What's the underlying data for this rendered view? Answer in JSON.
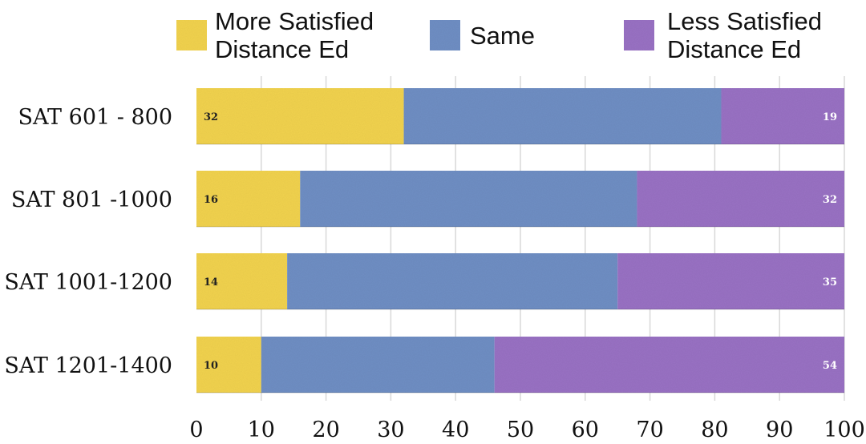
{
  "chart_data": {
    "type": "bar",
    "orientation": "horizontal",
    "stacked": true,
    "categories": [
      "SAT 601 - 800",
      "SAT 801 -1000",
      "SAT 1001-1200",
      "SAT 1201-1400"
    ],
    "series": [
      {
        "name": "More Satisfied Distance Ed",
        "name_lines": [
          "More Satisfied",
          "Distance Ed"
        ],
        "color": "#f2d34f",
        "values": [
          32,
          16,
          14,
          10
        ],
        "labels_shown": true
      },
      {
        "name": "Same",
        "name_lines": [
          "Same"
        ],
        "color": "#6f8fc4",
        "values": [
          49,
          52,
          51,
          36
        ],
        "labels_shown": false
      },
      {
        "name": "Less Satisfied Distance Ed",
        "name_lines": [
          "Less Satisfied",
          "Distance Ed"
        ],
        "color": "#9a72c4",
        "values": [
          19,
          32,
          35,
          54
        ],
        "labels_shown": true
      }
    ],
    "xlim": [
      0,
      100
    ],
    "xticks": [
      0,
      10,
      20,
      30,
      40,
      50,
      60,
      70,
      80,
      90,
      100
    ],
    "grid": true,
    "legend_position": "top"
  }
}
